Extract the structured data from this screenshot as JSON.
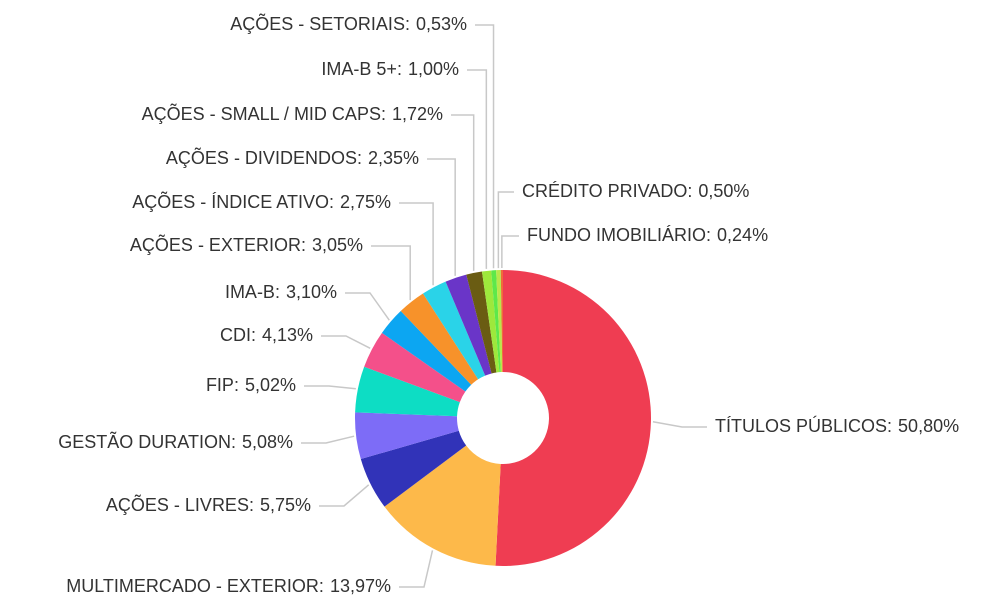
{
  "chart_data": {
    "type": "donut",
    "categories": [
      "TÍTULOS PÚBLICOS:",
      "MULTIMERCADO - EXTERIOR:",
      "AÇÕES - LIVRES:",
      "GESTÃO DURATION:",
      "FIP:",
      "CDI:",
      "IMA-B:",
      "AÇÕES - EXTERIOR:",
      "AÇÕES - ÍNDICE ATIVO:",
      "AÇÕES - DIVIDENDOS:",
      "AÇÕES - SMALL / MID CAPS:",
      "IMA-B 5+:",
      "AÇÕES - SETORIAIS:",
      "CRÉDITO PRIVADO:",
      "FUNDO IMOBILIÁRIO:"
    ],
    "values": [
      50.8,
      13.97,
      5.75,
      5.08,
      5.02,
      4.13,
      3.1,
      3.05,
      2.75,
      2.35,
      1.72,
      1.0,
      0.53,
      0.5,
      0.24
    ],
    "value_labels": [
      "50,80%",
      "13,97%",
      "5,75%",
      "5,08%",
      "5,02%",
      "4,13%",
      "3,10%",
      "3,05%",
      "2,75%",
      "2,35%",
      "1,72%",
      "1,00%",
      "0,53%",
      "0,50%",
      "0,24%"
    ],
    "colors": [
      "#ef3d52",
      "#fdb94a",
      "#3133b8",
      "#7d6cf7",
      "#0dddc4",
      "#f4508a",
      "#0ca6f2",
      "#f7922a",
      "#2ad3e8",
      "#6a35c8",
      "#6a5c12",
      "#9ee83c",
      "#5ee84a",
      "#b9e84a",
      "#f06a3a"
    ]
  }
}
